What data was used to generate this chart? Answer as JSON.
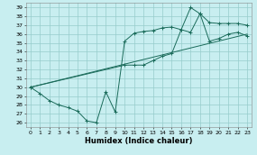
{
  "xlabel": "Humidex (Indice chaleur)",
  "bg_color": "#c8eef0",
  "grid_color": "#96cccc",
  "line_color": "#1a6b5a",
  "xlim": [
    -0.5,
    23.5
  ],
  "ylim": [
    25.5,
    39.5
  ],
  "xticks": [
    0,
    1,
    2,
    3,
    4,
    5,
    6,
    7,
    8,
    9,
    10,
    11,
    12,
    13,
    14,
    15,
    16,
    17,
    18,
    19,
    20,
    21,
    22,
    23
  ],
  "yticks": [
    26,
    27,
    28,
    29,
    30,
    31,
    32,
    33,
    34,
    35,
    36,
    37,
    38,
    39
  ],
  "curve1_x": [
    0,
    1,
    2,
    3,
    4,
    5,
    6,
    7,
    8,
    9,
    10,
    11,
    12,
    13,
    14,
    15,
    16,
    17,
    18,
    19,
    20,
    21,
    22,
    23
  ],
  "curve1_y": [
    30,
    29.3,
    28.5,
    28.0,
    27.7,
    27.3,
    26.2,
    26.0,
    29.5,
    27.2,
    35.2,
    36.1,
    36.3,
    36.4,
    36.7,
    36.8,
    36.5,
    39.0,
    38.3,
    37.3,
    37.2,
    37.2,
    37.2,
    37.0
  ],
  "curve2_x": [
    0,
    10,
    11,
    12,
    13,
    14,
    15,
    16,
    17,
    18,
    19,
    20,
    21,
    22,
    23
  ],
  "curve2_y": [
    30,
    32.5,
    32.5,
    32.5,
    33.0,
    33.5,
    33.8,
    36.5,
    36.2,
    38.3,
    35.2,
    35.5,
    36.0,
    36.2,
    35.8
  ],
  "curve3_x": [
    0,
    23
  ],
  "curve3_y": [
    30,
    36.0
  ],
  "xlabel_fontsize": 6,
  "tick_fontsize": 4.5,
  "linewidth": 0.7,
  "markersize": 2.5,
  "markeredgewidth": 0.7
}
